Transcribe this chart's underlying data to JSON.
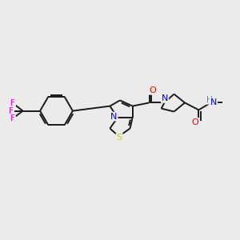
{
  "bg": "#ebebeb",
  "figsize": [
    3.0,
    3.0
  ],
  "dpi": 100,
  "colors": {
    "S": "#cccc00",
    "N": "#0000ee",
    "O": "#ff0000",
    "F": "#ff00ff",
    "H": "#4a9090",
    "bond": "#1a1a1a"
  },
  "lw": 1.4,
  "fs": 7.5
}
